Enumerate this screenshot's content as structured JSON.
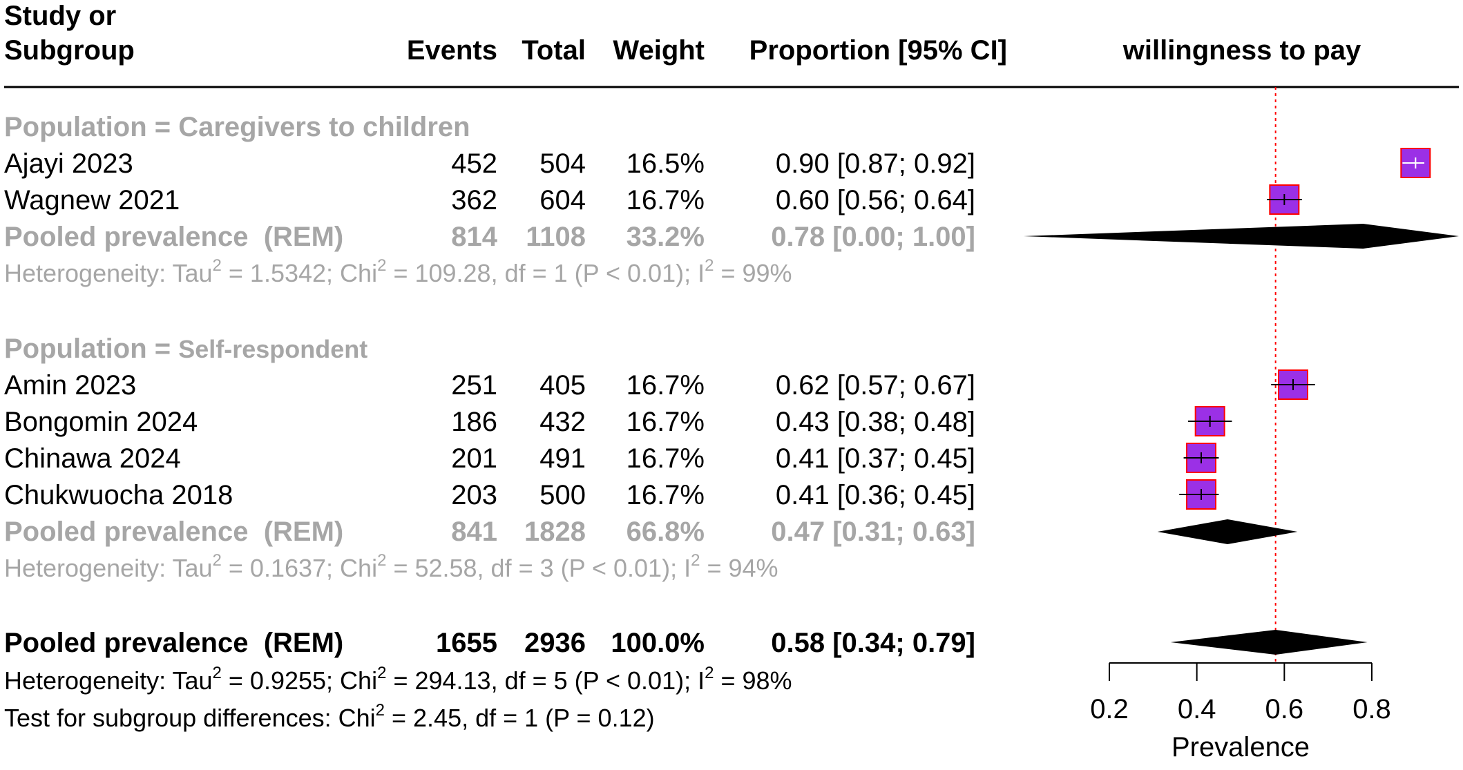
{
  "header": {
    "study_line1": "Study or",
    "study_line2": "Subgroup",
    "events": "Events",
    "total": "Total",
    "weight": "Weight",
    "proportion": "Proportion [95% CI]",
    "plot_title": "willingness to pay"
  },
  "groups": [
    {
      "label_prefix": "Population = ",
      "label_value": "Caregivers to children",
      "studies": [
        {
          "name": "Ajayi 2023",
          "events": "452",
          "total": "504",
          "weight": "16.5%",
          "ci": "0.90 [0.87; 0.92]",
          "est": 0.9,
          "lo": 0.87,
          "hi": 0.92
        },
        {
          "name": "Wagnew 2021",
          "events": "362",
          "total": "604",
          "weight": "16.7%",
          "ci": "0.60 [0.56; 0.64]",
          "est": 0.6,
          "lo": 0.56,
          "hi": 0.64
        }
      ],
      "pooled": {
        "label": "Pooled prevalence  (REM)",
        "events": "814",
        "total": "1108",
        "weight": "33.2%",
        "ci": "0.78 [0.00; 1.00]",
        "est": 0.78,
        "lo": 0.0,
        "hi": 1.0
      },
      "heterogeneity": {
        "a": "Heterogeneity: Tau",
        "b": " = 1.5342; Chi",
        "c": " = 109.28, df = 1 (P < 0.01); I",
        "d": " = 99%"
      }
    },
    {
      "label_prefix": "Population = ",
      "label_value": "Self-respondent",
      "studies": [
        {
          "name": "Amin 2023",
          "events": "251",
          "total": "405",
          "weight": "16.7%",
          "ci": "0.62 [0.57; 0.67]",
          "est": 0.62,
          "lo": 0.57,
          "hi": 0.67
        },
        {
          "name": "Bongomin 2024",
          "events": "186",
          "total": "432",
          "weight": "16.7%",
          "ci": "0.43 [0.38; 0.48]",
          "est": 0.43,
          "lo": 0.38,
          "hi": 0.48
        },
        {
          "name": "Chinawa 2024",
          "events": "201",
          "total": "491",
          "weight": "16.7%",
          "ci": "0.41 [0.37; 0.45]",
          "est": 0.41,
          "lo": 0.37,
          "hi": 0.45
        },
        {
          "name": "Chukwuocha 2018",
          "events": "203",
          "total": "500",
          "weight": "16.7%",
          "ci": "0.41 [0.36; 0.45]",
          "est": 0.41,
          "lo": 0.36,
          "hi": 0.45
        }
      ],
      "pooled": {
        "label": "Pooled prevalence  (REM)",
        "events": "841",
        "total": "1828",
        "weight": "66.8%",
        "ci": "0.47 [0.31; 0.63]",
        "est": 0.47,
        "lo": 0.31,
        "hi": 0.63
      },
      "heterogeneity": {
        "a": "Heterogeneity: Tau",
        "b": " = 0.1637; Chi",
        "c": " = 52.58, df = 3 (P < 0.01); I",
        "d": " = 94%"
      }
    }
  ],
  "overall": {
    "label": "Pooled prevalence  (REM)",
    "events": "1655",
    "total": "2936",
    "weight": "100.0%",
    "ci": "0.58 [0.34; 0.79]",
    "est": 0.58,
    "lo": 0.34,
    "hi": 0.79,
    "heterogeneity": {
      "a": "Heterogeneity: Tau",
      "b": " = 0.9255; Chi",
      "c": " = 294.13, df = 5 (P < 0.01); I",
      "d": " = 98%"
    },
    "subgroup_test": {
      "a": "Test for subgroup differences: Chi",
      "b": " = 2.45, df = 1 (P = 0.12)"
    }
  },
  "sup2": "2",
  "colors": {
    "box_fill": "#9b30e6",
    "box_stroke": "#ff0000",
    "ref_line": "#ff0000",
    "diamond": "#000000",
    "grey_text": "#a6a6a6"
  },
  "chart_data": {
    "type": "forest",
    "xlabel": "Prevalence",
    "xticks": [
      "0.2",
      "0.4",
      "0.6",
      "0.8"
    ],
    "xlim": [
      0.2,
      0.8
    ],
    "reference_line": 0.58,
    "series": [
      {
        "name": "Ajayi 2023",
        "est": 0.9,
        "lo": 0.87,
        "hi": 0.92
      },
      {
        "name": "Wagnew 2021",
        "est": 0.6,
        "lo": 0.56,
        "hi": 0.64
      },
      {
        "name": "Amin 2023",
        "est": 0.62,
        "lo": 0.57,
        "hi": 0.67
      },
      {
        "name": "Bongomin 2024",
        "est": 0.43,
        "lo": 0.38,
        "hi": 0.48
      },
      {
        "name": "Chinawa 2024",
        "est": 0.41,
        "lo": 0.37,
        "hi": 0.45
      },
      {
        "name": "Chukwuocha 2018",
        "est": 0.41,
        "lo": 0.36,
        "hi": 0.45
      }
    ]
  }
}
